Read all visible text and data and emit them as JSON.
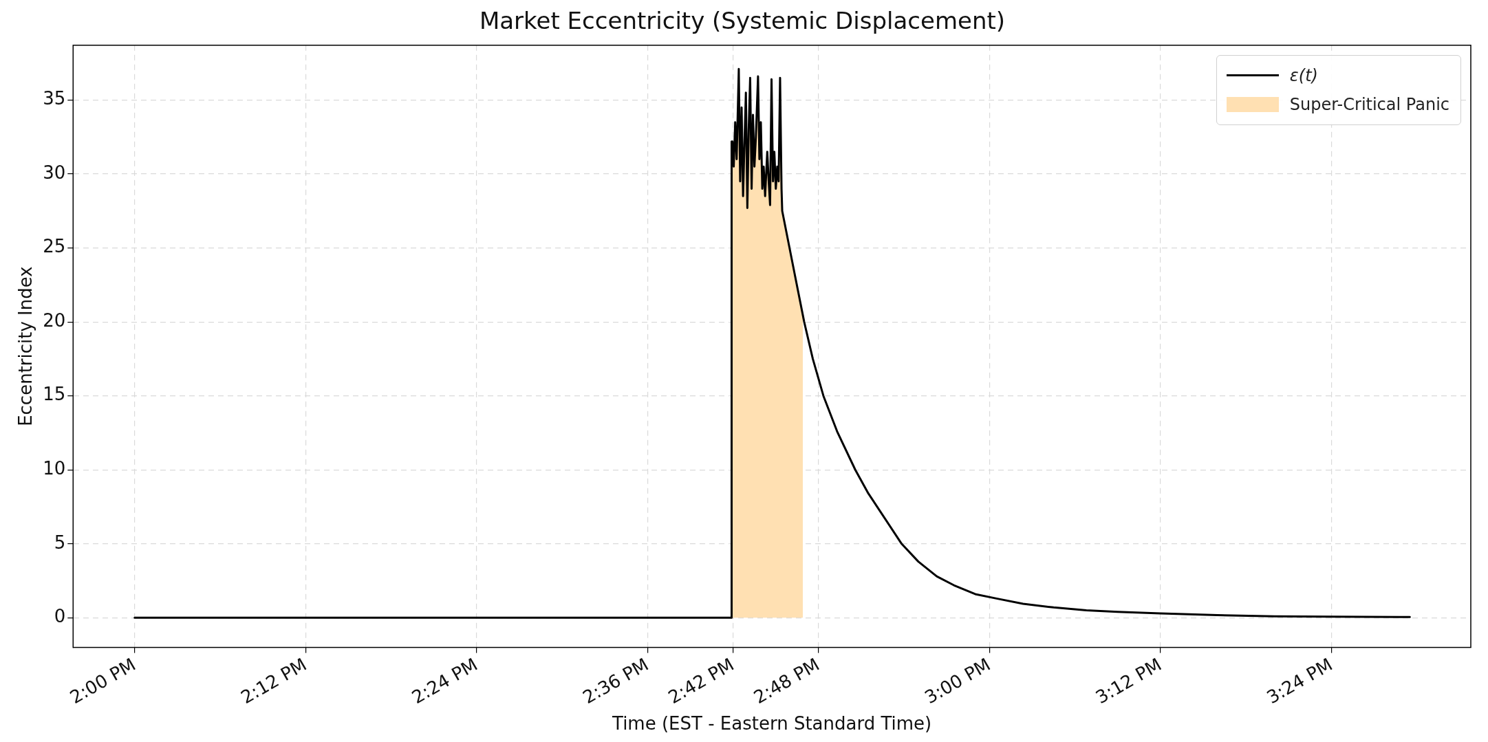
{
  "chart_data": {
    "type": "line",
    "title": "Market Eccentricity (Systemic Displacement)",
    "xlabel": "Time (EST - Eastern Standard Time)",
    "ylabel": "Eccentricity Index",
    "x": [
      14.0,
      14.6983,
      14.6983,
      14.6992,
      14.7008,
      14.7025,
      14.7042,
      14.7067,
      14.7083,
      14.71,
      14.7117,
      14.7133,
      14.715,
      14.7167,
      14.7183,
      14.72,
      14.7217,
      14.7233,
      14.725,
      14.7267,
      14.7292,
      14.7308,
      14.7325,
      14.7342,
      14.7358,
      14.7375,
      14.74,
      14.7417,
      14.7433,
      14.745,
      14.7467,
      14.7483,
      14.75,
      14.7517,
      14.7533,
      14.755,
      14.7567,
      14.7575,
      14.7722,
      14.7832,
      14.7933,
      14.8057,
      14.8217,
      14.843,
      14.8583,
      14.8972,
      14.9167,
      14.9383,
      14.9583,
      14.9833,
      15.0083,
      15.0392,
      15.075,
      15.1133,
      15.15,
      15.2,
      15.2667,
      15.3333,
      15.4,
      15.4917
    ],
    "series": [
      {
        "name": "Super-Critical Panic",
        "type": "area",
        "color": "#ffe0b2",
        "x": [
          14.6983,
          14.6983,
          14.6992,
          14.7008,
          14.7025,
          14.7042,
          14.7067,
          14.7083,
          14.71,
          14.7117,
          14.7133,
          14.715,
          14.7167,
          14.7183,
          14.72,
          14.7217,
          14.7233,
          14.725,
          14.7267,
          14.7292,
          14.7308,
          14.7325,
          14.7342,
          14.7358,
          14.7375,
          14.74,
          14.7417,
          14.7433,
          14.745,
          14.7467,
          14.7483,
          14.75,
          14.7517,
          14.7533,
          14.755,
          14.7567,
          14.7575,
          14.7722,
          14.7817
        ],
        "values": [
          0,
          32.2,
          32.2,
          30.5,
          33.5,
          31,
          37.1,
          29.5,
          34.5,
          28.5,
          32,
          35.5,
          27.7,
          33,
          36.5,
          29,
          34,
          30.5,
          32.5,
          36.6,
          31,
          33.5,
          29,
          30.5,
          28.5,
          31.5,
          29.5,
          27.9,
          36.4,
          29.5,
          31.5,
          29,
          30.5,
          29.5,
          36.5,
          29,
          27.5,
          23.2,
          20.3
        ]
      },
      {
        "name": "ε(t)",
        "color": "#000000",
        "values": [
          0,
          0,
          32.2,
          32.2,
          30.5,
          33.5,
          31,
          37.1,
          29.5,
          34.5,
          28.5,
          32,
          35.5,
          27.7,
          33,
          36.5,
          29,
          34,
          30.5,
          32.5,
          36.6,
          31,
          33.5,
          29,
          30.5,
          28.5,
          31.5,
          29.5,
          27.9,
          36.4,
          29.5,
          31.5,
          29,
          30.5,
          29.5,
          36.5,
          29,
          27.5,
          23.2,
          20,
          17.5,
          15,
          12.6,
          10,
          8.4,
          5,
          3.8,
          2.8,
          2.2,
          1.6,
          1.3,
          0.95,
          0.7,
          0.5,
          0.4,
          0.3,
          0.18,
          0.1,
          0.07,
          0.05
        ]
      }
    ],
    "xlim": [
      13.928,
      15.563
    ],
    "xticks": [
      {
        "value": 14.0,
        "label": "2:00 PM"
      },
      {
        "value": 14.2,
        "label": "2:12 PM"
      },
      {
        "value": 14.4,
        "label": "2:24 PM"
      },
      {
        "value": 14.6,
        "label": "2:36 PM"
      },
      {
        "value": 14.7,
        "label": "2:42 PM"
      },
      {
        "value": 14.8,
        "label": "2:48 PM"
      },
      {
        "value": 15.0,
        "label": "3:00 PM"
      },
      {
        "value": 15.2,
        "label": "3:12 PM"
      },
      {
        "value": 15.4,
        "label": "3:24 PM"
      }
    ],
    "ylim": [
      -2,
      38.7
    ],
    "yticks": [
      0,
      5,
      10,
      15,
      20,
      25,
      30,
      35
    ],
    "grid": true,
    "legend": "top right",
    "marker": "none",
    "line_style": "solid"
  }
}
